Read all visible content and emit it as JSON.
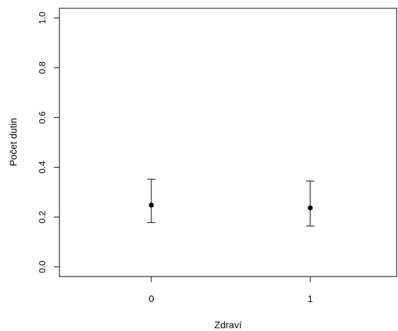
{
  "chart_data": {
    "type": "scatter",
    "title": "",
    "xlabel": "Zdraví",
    "ylabel": "Počet dutin",
    "categories": [
      "0",
      "1"
    ],
    "ylim": [
      0,
      1
    ],
    "yticks": [
      0.0,
      0.2,
      0.4,
      0.6,
      0.8,
      1.0
    ],
    "ytick_labels": [
      "0.0",
      "0.2",
      "0.4",
      "0.6",
      "0.8",
      "1.0"
    ],
    "grid": false,
    "series": [
      {
        "values": [
          0.248,
          0.237
        ],
        "lower": [
          0.178,
          0.164
        ],
        "upper": [
          0.352,
          0.345
        ]
      }
    ]
  }
}
